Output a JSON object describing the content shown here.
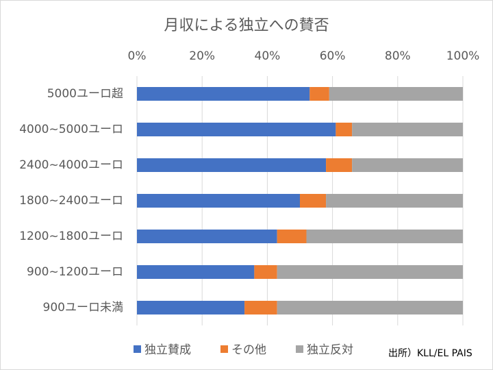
{
  "chart_data": {
    "type": "stacked_barh",
    "title": "月収による独立への賛否",
    "categories": [
      "5000ユーロ超",
      "4000~5000ユーロ",
      "2400~4000ユーロ",
      "1800~2400ユーロ",
      "1200~1800ユーロ",
      "900~1200ユーロ",
      "900ユーロ未満"
    ],
    "series": [
      {
        "name": "独立賛成",
        "color": "#4472c4",
        "values": [
          53,
          61,
          58,
          50,
          43,
          36,
          33
        ]
      },
      {
        "name": "その他",
        "color": "#ed7d31",
        "values": [
          6,
          5,
          8,
          8,
          9,
          7,
          10
        ]
      },
      {
        "name": "独立反対",
        "color": "#a5a5a5",
        "values": [
          41,
          34,
          34,
          42,
          48,
          57,
          57
        ]
      }
    ],
    "xlim": [
      0,
      100
    ],
    "xticks": [
      {
        "value": 0,
        "label": "0%"
      },
      {
        "value": 20,
        "label": "20%"
      },
      {
        "value": 40,
        "label": "40%"
      },
      {
        "value": 60,
        "label": "60%"
      },
      {
        "value": 80,
        "label": "80%"
      },
      {
        "value": 100,
        "label": "100%"
      }
    ],
    "grid": true,
    "legend": "bottom",
    "source": "出所）KLL/EL PAIS"
  }
}
